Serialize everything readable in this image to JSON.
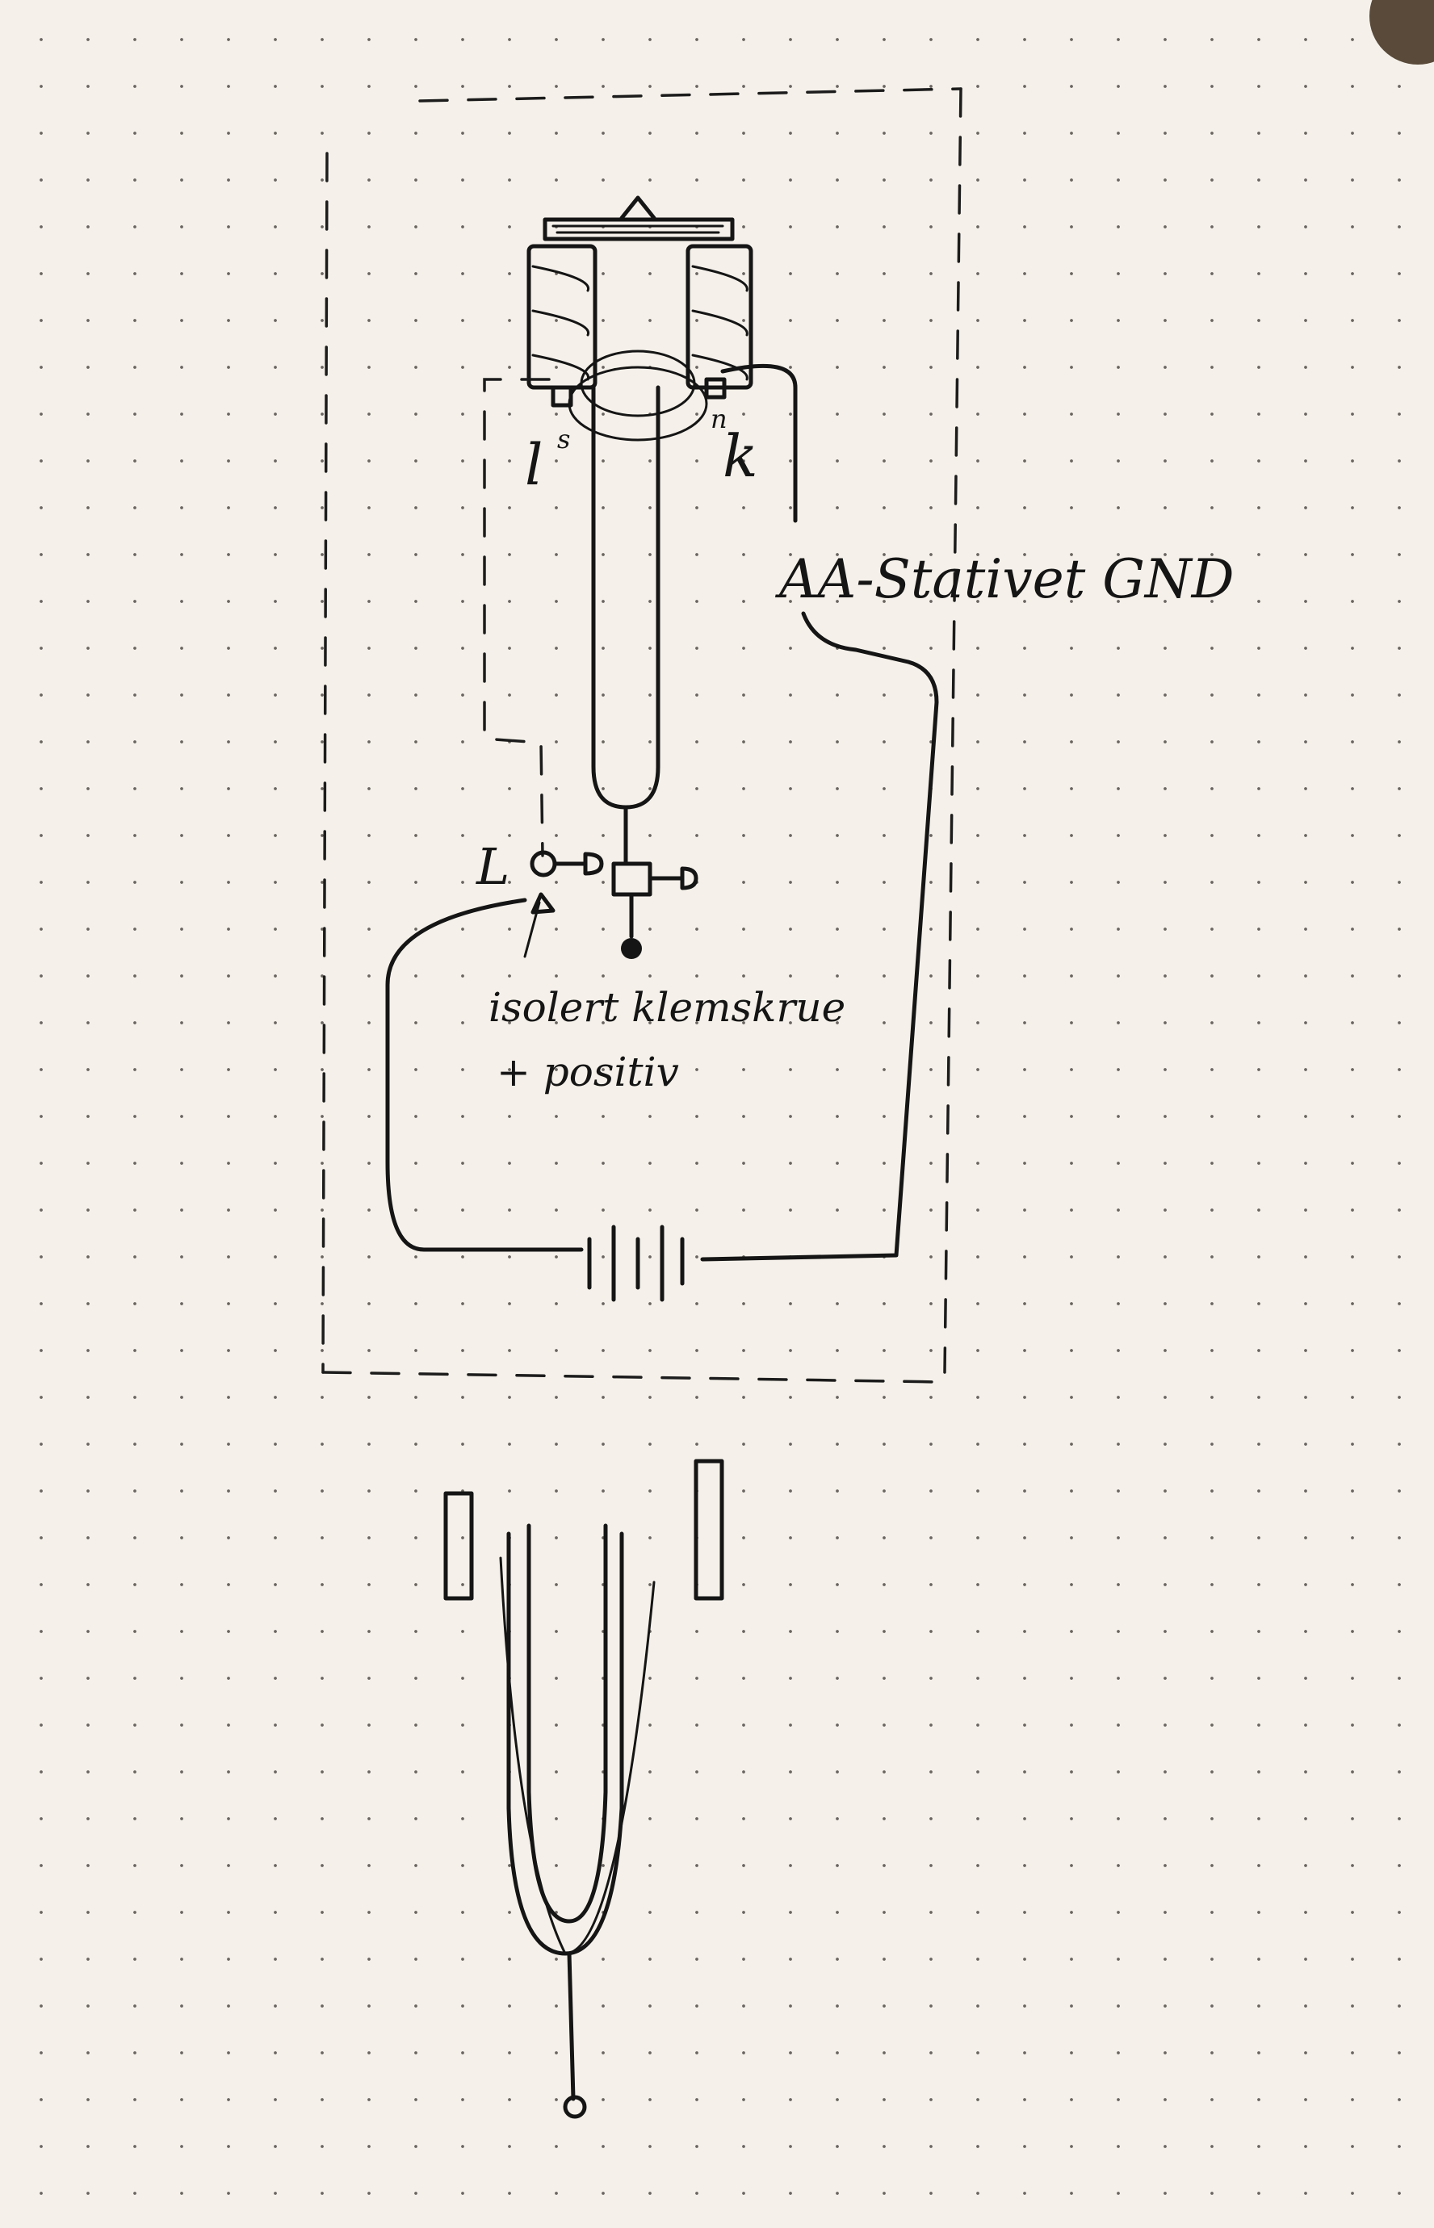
{
  "labels": {
    "coil_left": "l",
    "coil_left_sup": "s",
    "coil_right": "k",
    "coil_right_sup": "n",
    "ground": "AA-Stativet GND",
    "terminal": "L",
    "note_line1": "isolert klemskrue",
    "note_line2": "+ positiv"
  },
  "colors": {
    "ink": "#151515",
    "paper": "#f5f1ea"
  }
}
